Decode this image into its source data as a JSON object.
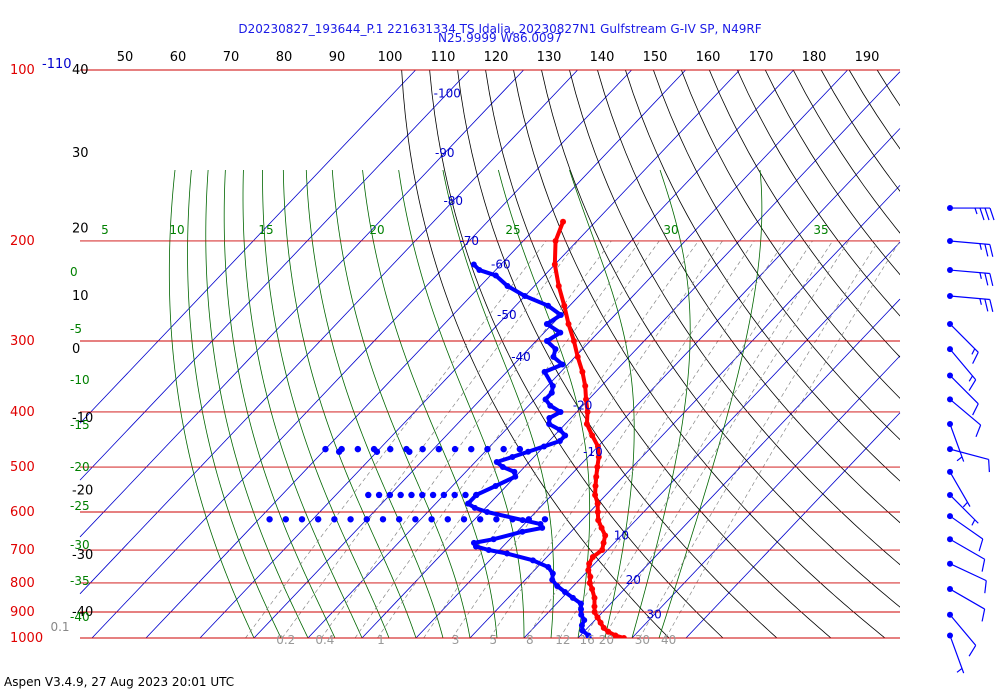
{
  "header": {
    "line1": "D20230827_193644_P.1 221631334 TS Idalia, 20230827N1 Gulfstream G-IV SP, N49RF",
    "line2": "N25.9999 W86.0097"
  },
  "footer": {
    "text": "Aspen V3.4.9, 27 Aug 2023  20:01 UTC"
  },
  "colors": {
    "temperature": "#ff0000",
    "dewpoint": "#0000ff",
    "isobar": "#cc0000",
    "isotherm": "#0000cc",
    "dry_adiabat": "#000000",
    "moist_adiabat": "#006600",
    "mixing_ratio": "#888888",
    "top_axis": "#000000",
    "adiabat_label": "#008000",
    "wind": "#0000ff"
  },
  "chart_data": {
    "type": "skew-t",
    "title": "D20230827_193644_P.1 221631334 TS Idalia, 20230827N1 Gulfstream G-IV SP, N49RF",
    "subtitle": "N25.9999 W86.0097",
    "pressure_axis": {
      "unit": "hPa",
      "log_scale": true,
      "range": [
        1000,
        100
      ],
      "ticks": [
        {
          "value": 1000,
          "label": "1000"
        },
        {
          "value": 900,
          "label": "900"
        },
        {
          "value": 800,
          "label": "800"
        },
        {
          "value": 700,
          "label": "700"
        },
        {
          "value": 600,
          "label": "600"
        },
        {
          "value": 500,
          "label": "500"
        },
        {
          "value": 400,
          "label": "400"
        },
        {
          "value": 300,
          "label": "300"
        },
        {
          "value": 200,
          "label": "200"
        },
        {
          "value": 100,
          "label": "100"
        }
      ],
      "extra_label": "-110"
    },
    "isotherms": [
      -110,
      -100,
      -90,
      -80,
      -70,
      -60,
      -50,
      -40,
      -30,
      -20,
      -10,
      0,
      10,
      20,
      30,
      40
    ],
    "isotherm_labels": [
      {
        "value": -100,
        "label": "-100",
        "p": 110
      },
      {
        "value": -90,
        "label": "-90",
        "p": 140
      },
      {
        "value": -80,
        "label": "-80",
        "p": 170
      },
      {
        "value": -70,
        "label": "-70",
        "p": 200
      },
      {
        "value": -60,
        "label": "-60",
        "p": 220
      },
      {
        "value": -50,
        "label": "-50",
        "p": 270
      },
      {
        "value": -40,
        "label": "-40",
        "p": 320
      },
      {
        "value": -20,
        "label": "-20",
        "p": 390
      },
      {
        "value": -10,
        "label": "-10",
        "p": 470
      },
      {
        "value": 10,
        "label": "10",
        "p": 660
      },
      {
        "value": 20,
        "label": "20",
        "p": 790
      },
      {
        "value": 30,
        "label": "30",
        "p": 910
      }
    ],
    "dry_adiabats_K": [
      310,
      320,
      330,
      340,
      350,
      360,
      370,
      380,
      390,
      400,
      410,
      420,
      430,
      440,
      450,
      460,
      470,
      480,
      490,
      500,
      510,
      520,
      530,
      540,
      550,
      560,
      570,
      580
    ],
    "top_axis_labels": [
      "50",
      "60",
      "70",
      "80",
      "90",
      "100",
      "110",
      "120",
      "130",
      "140",
      "150",
      "160",
      "170",
      "180",
      "190"
    ],
    "moist_adiabats_C": [
      -40,
      -35,
      -30,
      -25,
      -20,
      -15,
      -10,
      -5,
      0,
      5,
      10,
      15,
      20,
      25,
      30,
      35
    ],
    "moist_labels_left": [
      {
        "label": "0"
      },
      {
        "label": "-5"
      },
      {
        "label": "-10"
      },
      {
        "label": "-15"
      },
      {
        "label": "-20"
      },
      {
        "label": "-25"
      },
      {
        "label": "-30"
      },
      {
        "label": "-35"
      },
      {
        "label": "-40"
      }
    ],
    "moist_labels_top": [
      {
        "value": 5,
        "label": "5"
      },
      {
        "value": 10,
        "label": "10"
      },
      {
        "value": 15,
        "label": "15"
      },
      {
        "value": 20,
        "label": "20"
      },
      {
        "value": 25,
        "label": "25"
      },
      {
        "value": 30,
        "label": "30"
      },
      {
        "value": 35,
        "label": "35"
      }
    ],
    "height_labels": [
      {
        "value": "40",
        "p": 100
      },
      {
        "value": "30",
        "p": 140
      },
      {
        "value": "20",
        "p": 190
      },
      {
        "value": "10",
        "p": 250
      },
      {
        "value": "0",
        "p": 310
      },
      {
        "value": "-10",
        "p": 410
      },
      {
        "value": "-20",
        "p": 550
      },
      {
        "value": "-30",
        "p": 715
      },
      {
        "value": "-40",
        "p": 900
      }
    ],
    "mixing_ratios_gkg": [
      0.1,
      0.2,
      0.4,
      0.7,
      1,
      2,
      3,
      5,
      8,
      12,
      16,
      20,
      30,
      40
    ],
    "mixing_ratio_labels": [
      {
        "value": 0.1,
        "label": "0.1"
      },
      {
        "value": 0.2,
        "label": "0.2"
      },
      {
        "value": 0.4,
        "label": "0.4"
      },
      {
        "value": 1,
        "label": "1"
      },
      {
        "value": 3,
        "label": "3"
      },
      {
        "value": 5,
        "label": "5"
      },
      {
        "value": 8,
        "label": "8"
      },
      {
        "value": 12,
        "label": "12"
      },
      {
        "value": 16,
        "label": "16"
      },
      {
        "value": 20,
        "label": "20"
      },
      {
        "value": 30,
        "label": "30"
      },
      {
        "value": 40,
        "label": "40"
      }
    ],
    "series": [
      {
        "name": "Temperature",
        "unit": "C",
        "points": [
          [
            1000,
            28.5
          ],
          [
            990,
            26.5
          ],
          [
            975,
            24.5
          ],
          [
            960,
            23.0
          ],
          [
            940,
            21.5
          ],
          [
            920,
            20.0
          ],
          [
            900,
            18.5
          ],
          [
            880,
            17.5
          ],
          [
            850,
            16.0
          ],
          [
            820,
            14.0
          ],
          [
            800,
            12.5
          ],
          [
            780,
            11.5
          ],
          [
            760,
            10.0
          ],
          [
            740,
            9.0
          ],
          [
            720,
            8.5
          ],
          [
            700,
            9.0
          ],
          [
            680,
            8.0
          ],
          [
            660,
            7.0
          ],
          [
            640,
            5.0
          ],
          [
            620,
            3.0
          ],
          [
            600,
            1.5
          ],
          [
            580,
            0.0
          ],
          [
            560,
            -2.0
          ],
          [
            540,
            -3.5
          ],
          [
            520,
            -5.0
          ],
          [
            500,
            -6.5
          ],
          [
            480,
            -8.0
          ],
          [
            460,
            -10.0
          ],
          [
            440,
            -13.0
          ],
          [
            420,
            -16.0
          ],
          [
            400,
            -18.0
          ],
          [
            380,
            -20.5
          ],
          [
            360,
            -23.0
          ],
          [
            340,
            -26.0
          ],
          [
            320,
            -29.5
          ],
          [
            300,
            -33.0
          ],
          [
            280,
            -37.0
          ],
          [
            260,
            -41.0
          ],
          [
            240,
            -45.5
          ],
          [
            220,
            -50.0
          ],
          [
            200,
            -54.0
          ],
          [
            185,
            -56.0
          ]
        ]
      },
      {
        "name": "Dewpoint",
        "unit": "C",
        "points": [
          [
            1000,
            22.0
          ],
          [
            990,
            21.5
          ],
          [
            970,
            19.5
          ],
          [
            950,
            18.5
          ],
          [
            930,
            18.0
          ],
          [
            910,
            16.5
          ],
          [
            890,
            15.5
          ],
          [
            870,
            14.5
          ],
          [
            850,
            12.0
          ],
          [
            830,
            9.5
          ],
          [
            810,
            7.0
          ],
          [
            790,
            5.0
          ],
          [
            770,
            4.0
          ],
          [
            750,
            2.0
          ],
          [
            730,
            -2.0
          ],
          [
            710,
            -8.0
          ],
          [
            700,
            -12.0
          ],
          [
            690,
            -15.0
          ],
          [
            680,
            -16.0
          ],
          [
            670,
            -13.0
          ],
          [
            650,
            -9.0
          ],
          [
            640,
            -6.0
          ],
          [
            630,
            -7.0
          ],
          [
            620,
            -11.0
          ],
          [
            600,
            -19.0
          ],
          [
            590,
            -22.0
          ],
          [
            580,
            -24.0
          ],
          [
            560,
            -24.0
          ],
          [
            540,
            -22.0
          ],
          [
            520,
            -20.0
          ],
          [
            510,
            -21.0
          ],
          [
            500,
            -24.0
          ],
          [
            490,
            -26.0
          ],
          [
            480,
            -24.0
          ],
          [
            470,
            -22.0
          ],
          [
            460,
            -20.0
          ],
          [
            450,
            -18.0
          ],
          [
            440,
            -18.0
          ],
          [
            430,
            -20.0
          ],
          [
            420,
            -23.0
          ],
          [
            410,
            -24.0
          ],
          [
            400,
            -23.0
          ],
          [
            390,
            -26.0
          ],
          [
            380,
            -28.0
          ],
          [
            370,
            -28.0
          ],
          [
            360,
            -29.0
          ],
          [
            340,
            -33.0
          ],
          [
            330,
            -31.0
          ],
          [
            320,
            -34.0
          ],
          [
            310,
            -35.0
          ],
          [
            300,
            -38.0
          ],
          [
            290,
            -37.0
          ],
          [
            280,
            -41.0
          ],
          [
            270,
            -40.0
          ],
          [
            260,
            -44.0
          ],
          [
            250,
            -50.0
          ],
          [
            240,
            -55.0
          ],
          [
            230,
            -59.0
          ],
          [
            225,
            -63.0
          ],
          [
            220,
            -65.0
          ]
        ]
      },
      {
        "name": "Dewpoint scatter 465 hPa",
        "unit": "C",
        "points": [
          [
            465,
            -60
          ],
          [
            465,
            -57
          ],
          [
            465,
            -54
          ],
          [
            465,
            -51
          ],
          [
            465,
            -48
          ],
          [
            465,
            -45
          ],
          [
            465,
            -42
          ],
          [
            465,
            -39
          ],
          [
            465,
            -36
          ],
          [
            465,
            -33
          ],
          [
            465,
            -30
          ],
          [
            465,
            -27
          ],
          [
            465,
            -24
          ],
          [
            470,
            -57
          ],
          [
            470,
            -50
          ],
          [
            470,
            -44
          ]
        ]
      },
      {
        "name": "Dewpoint scatter 560 hPa",
        "unit": "C",
        "points": [
          [
            560,
            -44
          ],
          [
            560,
            -42
          ],
          [
            560,
            -40
          ],
          [
            560,
            -38
          ],
          [
            560,
            -36
          ],
          [
            560,
            -34
          ],
          [
            560,
            -32
          ],
          [
            560,
            -30
          ],
          [
            560,
            -28
          ],
          [
            560,
            -26
          ],
          [
            560,
            -24
          ]
        ]
      },
      {
        "name": "Dewpoint scatter 618 hPa",
        "unit": "C",
        "points": [
          [
            618,
            -58
          ],
          [
            618,
            -55
          ],
          [
            618,
            -52
          ],
          [
            618,
            -49
          ],
          [
            618,
            -46
          ],
          [
            618,
            -43
          ],
          [
            618,
            -40
          ],
          [
            618,
            -37
          ],
          [
            618,
            -34
          ],
          [
            618,
            -31
          ],
          [
            618,
            -28
          ],
          [
            618,
            -25
          ],
          [
            618,
            -22
          ],
          [
            618,
            -19
          ],
          [
            618,
            -16
          ],
          [
            618,
            -13
          ],
          [
            618,
            -10
          ],
          [
            618,
            -7
          ]
        ]
      }
    ],
    "wind_barbs": [
      {
        "p": 175,
        "dir": 270,
        "kt": 35
      },
      {
        "p": 200,
        "dir": 265,
        "kt": 25
      },
      {
        "p": 225,
        "dir": 265,
        "kt": 25
      },
      {
        "p": 250,
        "dir": 265,
        "kt": 25
      },
      {
        "p": 280,
        "dir": 225,
        "kt": 15
      },
      {
        "p": 310,
        "dir": 220,
        "kt": 15
      },
      {
        "p": 345,
        "dir": 225,
        "kt": 10
      },
      {
        "p": 380,
        "dir": 230,
        "kt": 10
      },
      {
        "p": 420,
        "dir": 200,
        "kt": 5
      },
      {
        "p": 465,
        "dir": 255,
        "kt": 10
      },
      {
        "p": 510,
        "dir": 210,
        "kt": 5
      },
      {
        "p": 560,
        "dir": 225,
        "kt": 5
      },
      {
        "p": 610,
        "dir": 235,
        "kt": 10
      },
      {
        "p": 670,
        "dir": 240,
        "kt": 10
      },
      {
        "p": 740,
        "dir": 245,
        "kt": 10
      },
      {
        "p": 820,
        "dir": 240,
        "kt": 10
      },
      {
        "p": 910,
        "dir": 220,
        "kt": 10
      },
      {
        "p": 990,
        "dir": 200,
        "kt": 5
      }
    ]
  }
}
